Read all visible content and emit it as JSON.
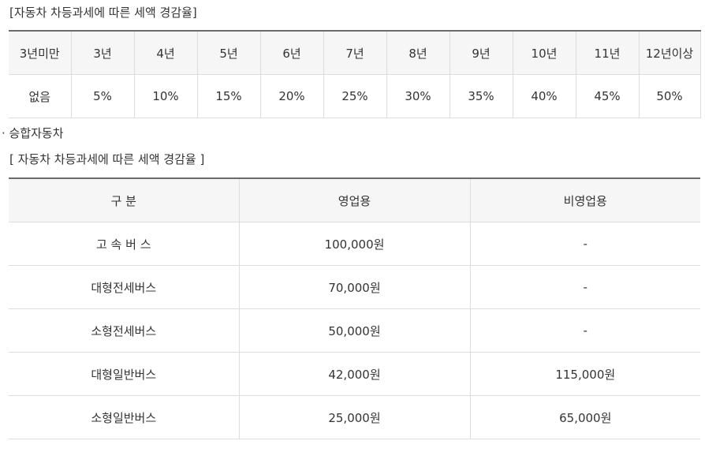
{
  "section1": {
    "caption": "[자동차 차등과세에 따른 세액 경감율]",
    "headers": [
      "3년미만",
      "3년",
      "4년",
      "5년",
      "6년",
      "7년",
      "8년",
      "9년",
      "10년",
      "11년",
      "12년이상"
    ],
    "values": [
      "없음",
      "5%",
      "10%",
      "15%",
      "20%",
      "25%",
      "30%",
      "35%",
      "40%",
      "45%",
      "50%"
    ]
  },
  "section2": {
    "bullet": "· 승합자동차",
    "caption": "[ 자동차 차등과세에 따른 세액 경감율 ]",
    "headers": [
      "구 분",
      "영업용",
      "비영업용"
    ],
    "rows": [
      [
        "고 속 버 스",
        "100,000원",
        "-"
      ],
      [
        "대형전세버스",
        "70,000원",
        "-"
      ],
      [
        "소형전세버스",
        "50,000원",
        "-"
      ],
      [
        "대형일반버스",
        "42,000원",
        "115,000원"
      ],
      [
        "소형일반버스",
        "25,000원",
        "65,000원"
      ]
    ]
  }
}
